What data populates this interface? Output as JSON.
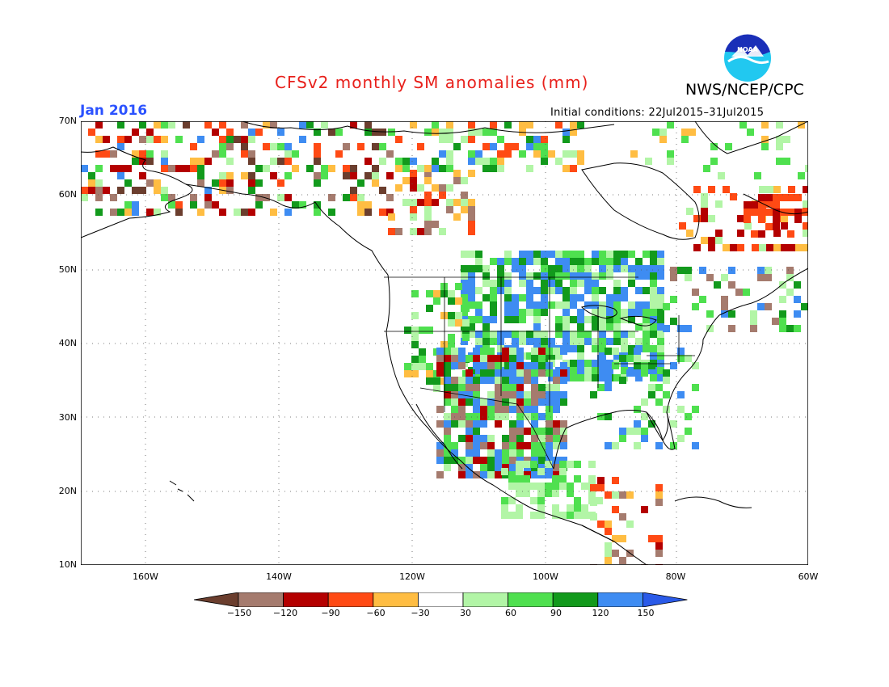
{
  "header": {
    "title": "CFSv2 monthly SM anomalies (mm)",
    "period": "Jan 2016",
    "agency": "NWS/NCEP/CPC",
    "initial_conditions": "Initial conditions: 22Jul2015–31Jul2015",
    "logo_text": "NOAA"
  },
  "axes": {
    "lat_labels": [
      "70N",
      "60N",
      "50N",
      "40N",
      "30N",
      "20N",
      "10N"
    ],
    "lon_labels": [
      "160W",
      "140W",
      "120W",
      "100W",
      "80W",
      "60W"
    ]
  },
  "colorbar": {
    "labels": [
      "−150",
      "−120",
      "−90",
      "−60",
      "−30",
      "30",
      "60",
      "90",
      "120",
      "150"
    ],
    "colors": [
      "#6b3e2e",
      "#a57b6e",
      "#b40000",
      "#ff4a14",
      "#ffbd42",
      "#ffffff",
      "#b2f5a6",
      "#4fe04f",
      "#129a1c",
      "#3e8cf2",
      "#2a5ae8"
    ]
  },
  "colors": {
    "title": "#e8201b",
    "period": "#2b52ff"
  }
}
